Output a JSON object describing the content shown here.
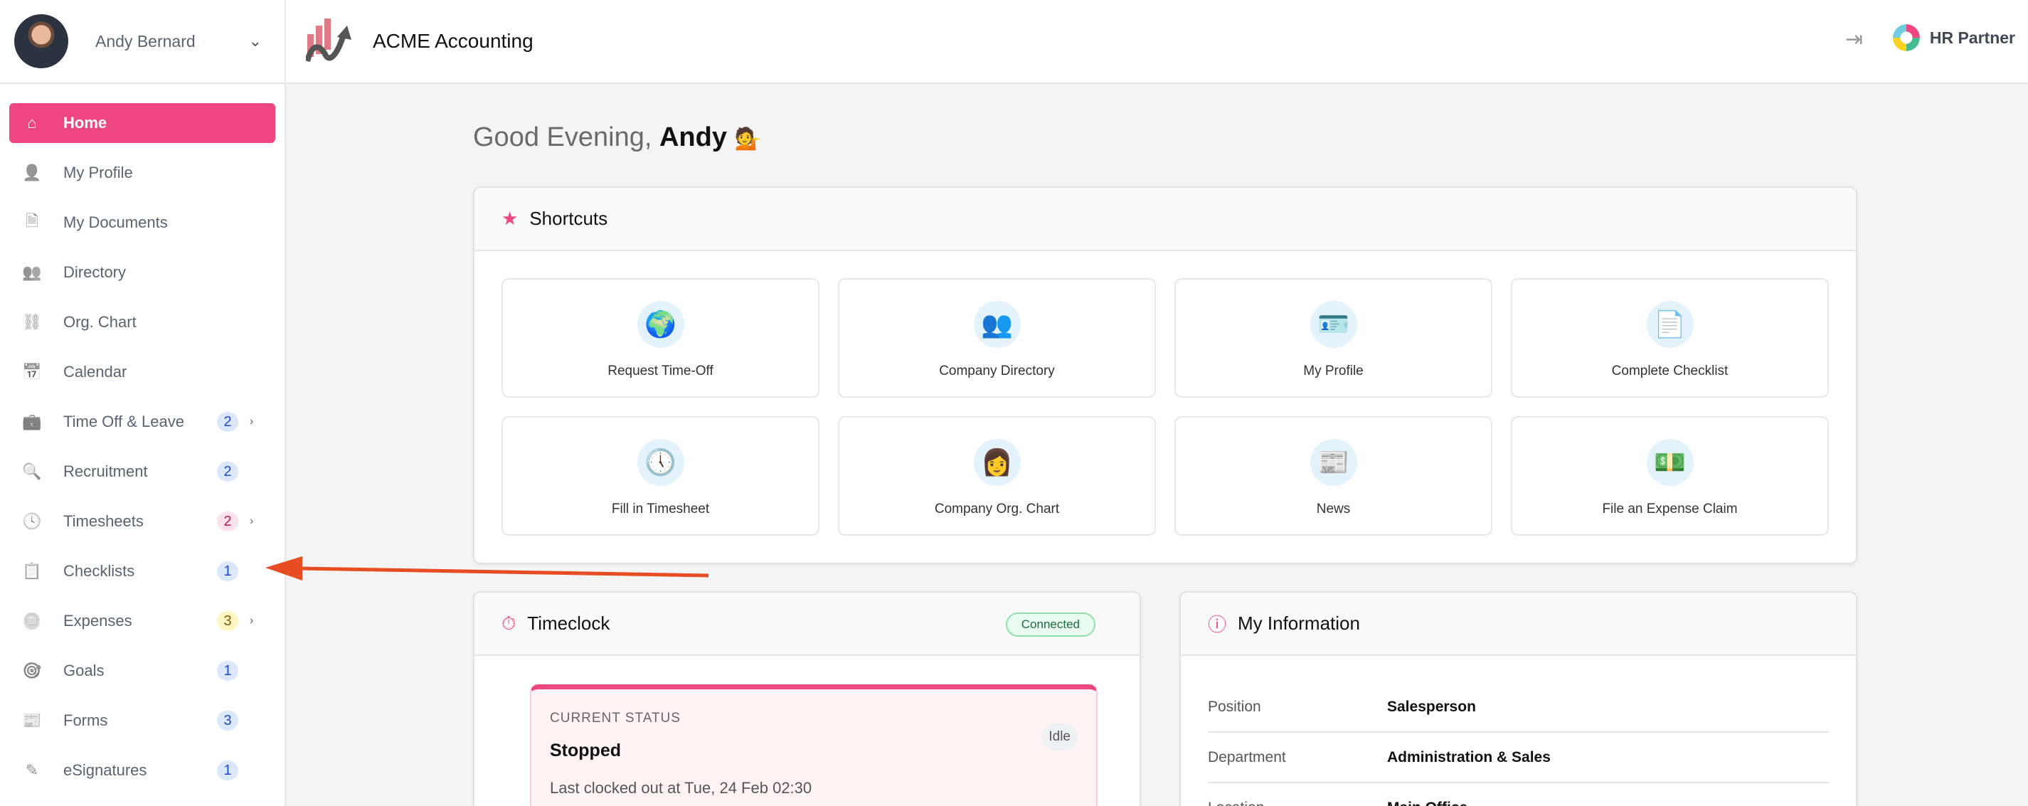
{
  "user": {
    "name": "Andy Bernard"
  },
  "sidebar": {
    "items": [
      {
        "label": "Home",
        "icon": "home-icon",
        "glyph": "⌂",
        "active": true
      },
      {
        "label": "My Profile",
        "icon": "user-icon",
        "glyph": "👤"
      },
      {
        "label": "My Documents",
        "icon": "document-icon",
        "glyph": "🗎"
      },
      {
        "label": "Directory",
        "icon": "users-icon",
        "glyph": "👥"
      },
      {
        "label": "Org. Chart",
        "icon": "org-chart-icon",
        "glyph": "⛓"
      },
      {
        "label": "Calendar",
        "icon": "calendar-icon",
        "glyph": "📅"
      },
      {
        "label": "Time Off & Leave",
        "icon": "briefcase-icon",
        "glyph": "💼",
        "badge": "2",
        "badge_color": "blue",
        "chevron": true
      },
      {
        "label": "Recruitment",
        "icon": "recruitment-icon",
        "glyph": "🔍",
        "badge": "2",
        "badge_color": "blue"
      },
      {
        "label": "Timesheets",
        "icon": "clock-icon",
        "glyph": "🕓",
        "badge": "2",
        "badge_color": "pink",
        "chevron": true
      },
      {
        "label": "Checklists",
        "icon": "checklist-icon",
        "glyph": "📋",
        "badge": "1",
        "badge_color": "blue"
      },
      {
        "label": "Expenses",
        "icon": "coins-icon",
        "glyph": "🪙",
        "badge": "3",
        "badge_color": "yellow",
        "chevron": true
      },
      {
        "label": "Goals",
        "icon": "target-icon",
        "glyph": "🎯",
        "badge": "1",
        "badge_color": "blue"
      },
      {
        "label": "Forms",
        "icon": "form-icon",
        "glyph": "📰",
        "badge": "3",
        "badge_color": "blue"
      },
      {
        "label": "eSignatures",
        "icon": "pen-icon",
        "glyph": "✎",
        "badge": "1",
        "badge_color": "blue"
      }
    ]
  },
  "header": {
    "company": "ACME Accounting",
    "partner": "HR Partner"
  },
  "greeting": {
    "prefix": "Good Evening,",
    "name": "Andy",
    "emoji": "💁"
  },
  "shortcuts": {
    "title": "Shortcuts",
    "items": [
      {
        "label": "Request Time-Off",
        "glyph": "🌍"
      },
      {
        "label": "Company Directory",
        "glyph": "👥"
      },
      {
        "label": "My Profile",
        "glyph": "🪪"
      },
      {
        "label": "Complete Checklist",
        "glyph": "📄"
      },
      {
        "label": "Fill in Timesheet",
        "glyph": "🕔"
      },
      {
        "label": "Company Org. Chart",
        "glyph": "👩"
      },
      {
        "label": "News",
        "glyph": "📰"
      },
      {
        "label": "File an Expense Claim",
        "glyph": "💵"
      }
    ]
  },
  "timeclock": {
    "title": "Timeclock",
    "connection": "Connected",
    "status_label": "CURRENT STATUS",
    "status": "Stopped",
    "state": "Idle",
    "last": "Last clocked out at Tue, 24 Feb 02:30"
  },
  "info": {
    "title": "My Information",
    "rows": [
      {
        "label": "Position",
        "value": "Salesperson"
      },
      {
        "label": "Department",
        "value": "Administration & Sales"
      },
      {
        "label": "Location",
        "value": "Main Office"
      }
    ]
  },
  "colors": {
    "accent": "#ed4680",
    "annotation_arrow": "#e84c22"
  }
}
